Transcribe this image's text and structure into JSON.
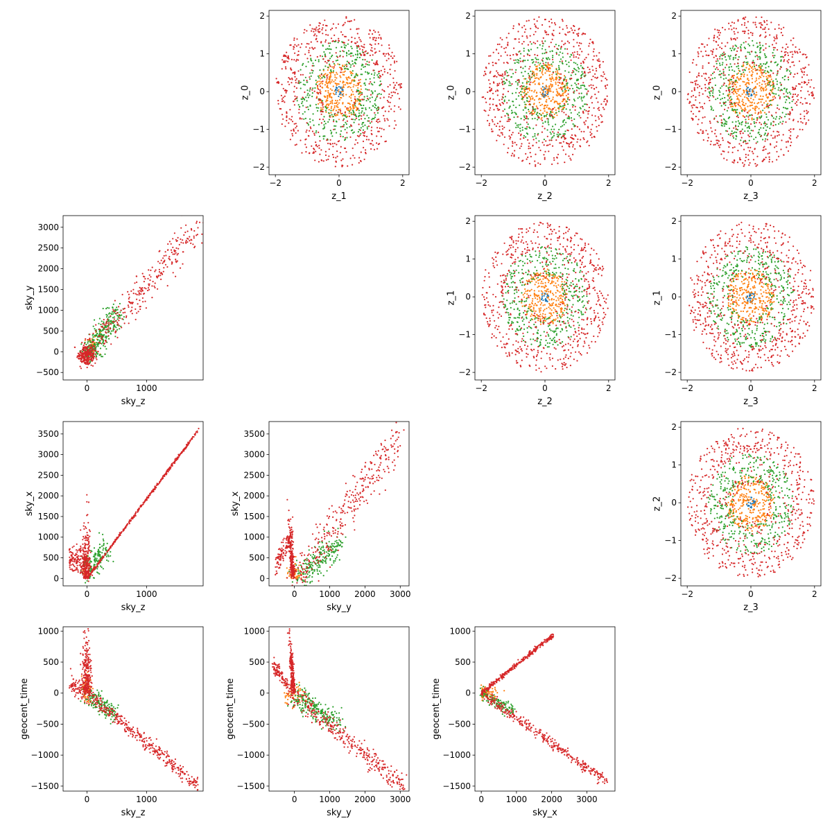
{
  "figure": {
    "colors": {
      "blue": "#1f77b4",
      "orange": "#ff7f0e",
      "green": "#2ca02c",
      "red": "#d62728"
    }
  },
  "chart_data": [
    {
      "type": "scatter",
      "row": 0,
      "col": 1,
      "xlabel": "z_1",
      "ylabel": "z_0",
      "xlim": [
        -2.2,
        2.2
      ],
      "ylim": [
        -2.2,
        2.15
      ],
      "xticks": [
        -2,
        0,
        2
      ],
      "yticks": [
        -2,
        -1,
        0,
        1,
        2
      ],
      "gen": {
        "kind": "rings",
        "n_red": 500,
        "n_green": 400,
        "n_orange": 300,
        "seed": 11
      }
    },
    {
      "type": "scatter",
      "row": 0,
      "col": 2,
      "xlabel": "z_2",
      "ylabel": "z_0",
      "xlim": [
        -2.2,
        2.2
      ],
      "ylim": [
        -2.2,
        2.15
      ],
      "xticks": [
        -2,
        0,
        2
      ],
      "yticks": [
        -2,
        -1,
        0,
        1,
        2
      ],
      "gen": {
        "kind": "rings",
        "n_red": 500,
        "n_green": 400,
        "n_orange": 300,
        "seed": 23
      }
    },
    {
      "type": "scatter",
      "row": 0,
      "col": 3,
      "xlabel": "z_3",
      "ylabel": "z_0",
      "xlim": [
        -2.2,
        2.2
      ],
      "ylim": [
        -2.2,
        2.15
      ],
      "xticks": [
        -2,
        0,
        2
      ],
      "yticks": [
        -2,
        -1,
        0,
        1,
        2
      ],
      "gen": {
        "kind": "rings",
        "n_red": 500,
        "n_green": 400,
        "n_orange": 300,
        "seed": 37
      }
    },
    {
      "type": "scatter",
      "row": 1,
      "col": 0,
      "xlabel": "sky_z",
      "ylabel": "sky_y",
      "xlim": [
        -400,
        1950
      ],
      "ylim": [
        -680,
        3280
      ],
      "xticks": [
        0,
        1000
      ],
      "yticks": [
        -500,
        0,
        500,
        1000,
        1500,
        2000,
        2500,
        3000
      ],
      "gen": {
        "kind": "sky_zy",
        "seed": 41
      }
    },
    {
      "type": "scatter",
      "row": 1,
      "col": 2,
      "xlabel": "z_2",
      "ylabel": "z_1",
      "xlim": [
        -2.2,
        2.2
      ],
      "ylim": [
        -2.2,
        2.15
      ],
      "xticks": [
        -2,
        0,
        2
      ],
      "yticks": [
        -2,
        -1,
        0,
        1,
        2
      ],
      "gen": {
        "kind": "rings",
        "n_red": 500,
        "n_green": 400,
        "n_orange": 300,
        "seed": 53
      }
    },
    {
      "type": "scatter",
      "row": 1,
      "col": 3,
      "xlabel": "z_3",
      "ylabel": "z_1",
      "xlim": [
        -2.2,
        2.2
      ],
      "ylim": [
        -2.2,
        2.15
      ],
      "xticks": [
        -2,
        0,
        2
      ],
      "yticks": [
        -2,
        -1,
        0,
        1,
        2
      ],
      "gen": {
        "kind": "rings",
        "n_red": 500,
        "n_green": 400,
        "n_orange": 300,
        "seed": 67
      }
    },
    {
      "type": "scatter",
      "row": 2,
      "col": 0,
      "xlabel": "sky_z",
      "ylabel": "sky_x",
      "xlim": [
        -400,
        1950
      ],
      "ylim": [
        -180,
        3800
      ],
      "xticks": [
        0,
        1000
      ],
      "yticks": [
        0,
        500,
        1000,
        1500,
        2000,
        2500,
        3000,
        3500
      ],
      "gen": {
        "kind": "sky_zx",
        "seed": 71
      }
    },
    {
      "type": "scatter",
      "row": 2,
      "col": 1,
      "xlabel": "sky_y",
      "ylabel": "sky_x",
      "xlim": [
        -720,
        3250
      ],
      "ylim": [
        -180,
        3800
      ],
      "xticks": [
        0,
        1000,
        2000,
        3000
      ],
      "yticks": [
        0,
        500,
        1000,
        1500,
        2000,
        2500,
        3000,
        3500
      ],
      "gen": {
        "kind": "sky_yx",
        "seed": 83
      }
    },
    {
      "type": "scatter",
      "row": 2,
      "col": 3,
      "xlabel": "z_3",
      "ylabel": "z_2",
      "xlim": [
        -2.2,
        2.2
      ],
      "ylim": [
        -2.2,
        2.15
      ],
      "xticks": [
        -2,
        0,
        2
      ],
      "yticks": [
        -2,
        -1,
        0,
        1,
        2
      ],
      "gen": {
        "kind": "rings",
        "n_red": 500,
        "n_green": 400,
        "n_orange": 300,
        "seed": 97
      }
    },
    {
      "type": "scatter",
      "row": 3,
      "col": 0,
      "xlabel": "sky_z",
      "ylabel": "geocent_time",
      "xlim": [
        -400,
        1950
      ],
      "ylim": [
        -1580,
        1070
      ],
      "xticks": [
        0,
        1000
      ],
      "yticks": [
        -1500,
        -1000,
        -500,
        0,
        500,
        1000
      ],
      "gen": {
        "kind": "sky_zt",
        "seed": 101
      }
    },
    {
      "type": "scatter",
      "row": 3,
      "col": 1,
      "xlabel": "sky_y",
      "ylabel": "geocent_time",
      "xlim": [
        -720,
        3250
      ],
      "ylim": [
        -1580,
        1070
      ],
      "xticks": [
        0,
        1000,
        2000,
        3000
      ],
      "yticks": [
        -1500,
        -1000,
        -500,
        0,
        500,
        1000
      ],
      "gen": {
        "kind": "sky_yt",
        "seed": 113
      }
    },
    {
      "type": "scatter",
      "row": 3,
      "col": 2,
      "xlabel": "sky_x",
      "ylabel": "geocent_time",
      "xlim": [
        -180,
        3800
      ],
      "ylim": [
        -1580,
        1070
      ],
      "xticks": [
        0,
        1000,
        2000,
        3000
      ],
      "yticks": [
        -1500,
        -1000,
        -500,
        0,
        500,
        1000
      ],
      "gen": {
        "kind": "sky_xt",
        "seed": 127
      }
    }
  ]
}
